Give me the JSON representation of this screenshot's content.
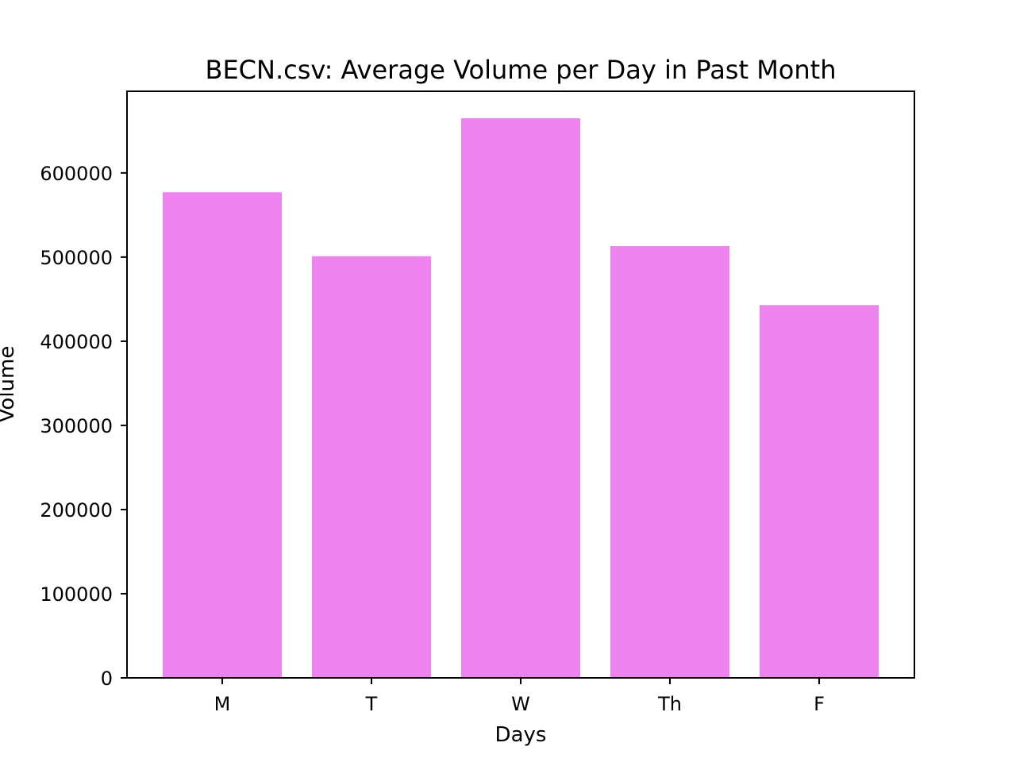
{
  "chart_data": {
    "type": "bar",
    "title": "BECN.csv: Average Volume per Day in Past Month",
    "xlabel": "Days",
    "ylabel": "Volume",
    "categories": [
      "M",
      "T",
      "W",
      "Th",
      "F"
    ],
    "values": [
      577000,
      501000,
      665000,
      513000,
      443000
    ],
    "ylim": [
      0,
      697000
    ],
    "yticks": [
      0,
      100000,
      200000,
      300000,
      400000,
      500000,
      600000
    ],
    "bar_color": "#EE82EE",
    "grid": false,
    "legend": "none"
  }
}
